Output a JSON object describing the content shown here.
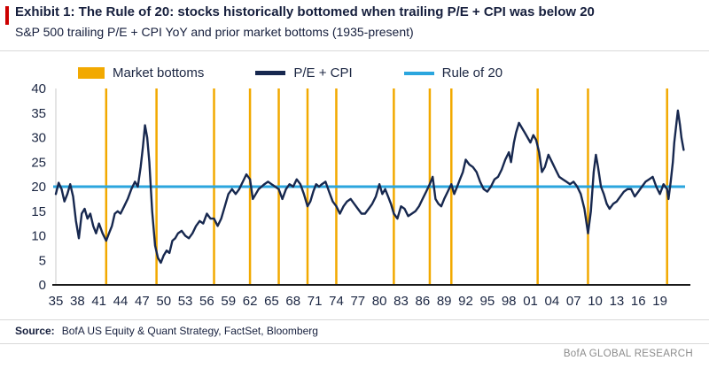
{
  "chart_data": {
    "type": "line",
    "title": "Exhibit 1:  The Rule of 20: stocks historically bottomed when trailing P/E + CPI was below 20",
    "subtitle": "S&P 500 trailing P/E + CPI YoY and prior market bottoms (1935-present)",
    "xlabel": "",
    "ylabel": "",
    "ylim": [
      0,
      40
    ],
    "x_range": [
      1935,
      2022.5
    ],
    "grid": "off",
    "legend_position": "top",
    "y_ticks": [
      0,
      5,
      10,
      15,
      20,
      25,
      30,
      35,
      40
    ],
    "x_tick_years": [
      1935,
      1938,
      1941,
      1944,
      1947,
      1950,
      1953,
      1956,
      1959,
      1962,
      1965,
      1968,
      1971,
      1974,
      1977,
      1980,
      1983,
      1986,
      1989,
      1992,
      1995,
      1998,
      2001,
      2004,
      2007,
      2010,
      2013,
      2016,
      2019
    ],
    "x_tick_labels": [
      "35",
      "38",
      "41",
      "44",
      "47",
      "50",
      "53",
      "56",
      "59",
      "62",
      "65",
      "68",
      "71",
      "74",
      "77",
      "80",
      "83",
      "86",
      "89",
      "92",
      "95",
      "98",
      "01",
      "04",
      "07",
      "10",
      "13",
      "16",
      "19"
    ],
    "rule_of_20_value": 20,
    "market_bottom_years": [
      1942,
      1949,
      1957,
      1962,
      1966,
      1970,
      1974,
      1982,
      1987,
      1990,
      2002,
      2009,
      2020
    ],
    "colors": {
      "market_bottoms": "#F2A900",
      "pe_cpi": "#17284F",
      "rule_of_20": "#2BA6DE",
      "accent_red": "#CC0000",
      "text_navy": "#1B2642",
      "axis_black": "#1A1A1A",
      "brand_gray": "#8C8C8C"
    },
    "legend": [
      {
        "label": "Market bottoms",
        "swatch": "rect",
        "color": "#F2A900"
      },
      {
        "label": "P/E + CPI",
        "swatch": "line-thick",
        "color": "#17284F"
      },
      {
        "label": "Rule of 20",
        "swatch": "line-thin",
        "color": "#2BA6DE"
      }
    ],
    "series": [
      {
        "name": "P/E + CPI",
        "color": "#17284F",
        "points": [
          [
            1935,
            18.5
          ],
          [
            1935.4,
            20.8
          ],
          [
            1935.8,
            19.5
          ],
          [
            1936.2,
            17
          ],
          [
            1936.6,
            18.5
          ],
          [
            1937,
            20.5
          ],
          [
            1937.4,
            18
          ],
          [
            1937.8,
            13
          ],
          [
            1938.2,
            9.5
          ],
          [
            1938.6,
            14.5
          ],
          [
            1939,
            15.5
          ],
          [
            1939.4,
            13.5
          ],
          [
            1939.8,
            14.5
          ],
          [
            1940.2,
            12
          ],
          [
            1940.6,
            10.5
          ],
          [
            1941,
            12.5
          ],
          [
            1941.5,
            10.5
          ],
          [
            1942,
            9
          ],
          [
            1942.4,
            10.5
          ],
          [
            1942.8,
            12
          ],
          [
            1943.2,
            14.5
          ],
          [
            1943.6,
            15
          ],
          [
            1944,
            14.5
          ],
          [
            1944.5,
            16
          ],
          [
            1945,
            17.5
          ],
          [
            1945.5,
            19.5
          ],
          [
            1946,
            21
          ],
          [
            1946.4,
            20
          ],
          [
            1946.8,
            24
          ],
          [
            1947.1,
            28
          ],
          [
            1947.4,
            32.5
          ],
          [
            1947.7,
            30
          ],
          [
            1948,
            25
          ],
          [
            1948.4,
            15
          ],
          [
            1948.8,
            8
          ],
          [
            1949.2,
            5.5
          ],
          [
            1949.6,
            4.5
          ],
          [
            1950,
            6
          ],
          [
            1950.4,
            7
          ],
          [
            1950.8,
            6.5
          ],
          [
            1951.2,
            9
          ],
          [
            1951.6,
            9.5
          ],
          [
            1952,
            10.5
          ],
          [
            1952.5,
            11
          ],
          [
            1953,
            10
          ],
          [
            1953.5,
            9.5
          ],
          [
            1954,
            10.5
          ],
          [
            1954.5,
            12
          ],
          [
            1955,
            13
          ],
          [
            1955.5,
            12.5
          ],
          [
            1956,
            14.5
          ],
          [
            1956.5,
            13.5
          ],
          [
            1957,
            13.5
          ],
          [
            1957.5,
            12
          ],
          [
            1958,
            13.5
          ],
          [
            1958.5,
            16
          ],
          [
            1959,
            18.5
          ],
          [
            1959.5,
            19.5
          ],
          [
            1960,
            18.5
          ],
          [
            1960.5,
            19.5
          ],
          [
            1961,
            21
          ],
          [
            1961.5,
            22.5
          ],
          [
            1962,
            21.5
          ],
          [
            1962.4,
            17.5
          ],
          [
            1962.8,
            18.5
          ],
          [
            1963.2,
            19.5
          ],
          [
            1963.6,
            20
          ],
          [
            1964,
            20.5
          ],
          [
            1964.5,
            21
          ],
          [
            1965,
            20.5
          ],
          [
            1965.5,
            20
          ],
          [
            1966,
            19.5
          ],
          [
            1966.5,
            17.5
          ],
          [
            1967,
            19.5
          ],
          [
            1967.5,
            20.5
          ],
          [
            1968,
            20
          ],
          [
            1968.5,
            21.5
          ],
          [
            1969,
            20.5
          ],
          [
            1969.5,
            18.5
          ],
          [
            1970,
            16
          ],
          [
            1970.4,
            17
          ],
          [
            1970.8,
            19
          ],
          [
            1971.2,
            20.5
          ],
          [
            1971.6,
            20
          ],
          [
            1972,
            20.5
          ],
          [
            1972.5,
            21
          ],
          [
            1973,
            19
          ],
          [
            1973.5,
            17
          ],
          [
            1974,
            16
          ],
          [
            1974.5,
            14.5
          ],
          [
            1975,
            16
          ],
          [
            1975.5,
            17
          ],
          [
            1976,
            17.5
          ],
          [
            1976.5,
            16.5
          ],
          [
            1977,
            15.5
          ],
          [
            1977.5,
            14.5
          ],
          [
            1978,
            14.5
          ],
          [
            1978.5,
            15.5
          ],
          [
            1979,
            16.5
          ],
          [
            1979.5,
            18
          ],
          [
            1980,
            20.5
          ],
          [
            1980.4,
            18.5
          ],
          [
            1980.8,
            19.5
          ],
          [
            1981.2,
            18
          ],
          [
            1981.6,
            16.5
          ],
          [
            1982,
            14.5
          ],
          [
            1982.5,
            13.5
          ],
          [
            1983,
            16
          ],
          [
            1983.5,
            15.5
          ],
          [
            1984,
            14
          ],
          [
            1984.5,
            14.5
          ],
          [
            1985,
            15
          ],
          [
            1985.5,
            16
          ],
          [
            1986,
            17.5
          ],
          [
            1986.5,
            19
          ],
          [
            1987,
            20.5
          ],
          [
            1987.4,
            22
          ],
          [
            1987.8,
            17.5
          ],
          [
            1988.2,
            16.5
          ],
          [
            1988.6,
            16
          ],
          [
            1989,
            17.5
          ],
          [
            1989.5,
            19
          ],
          [
            1990,
            20.5
          ],
          [
            1990.4,
            18.5
          ],
          [
            1990.8,
            20
          ],
          [
            1991.2,
            21.5
          ],
          [
            1991.6,
            23
          ],
          [
            1992,
            25.5
          ],
          [
            1992.5,
            24.5
          ],
          [
            1993,
            24
          ],
          [
            1993.5,
            23
          ],
          [
            1994,
            21
          ],
          [
            1994.5,
            19.5
          ],
          [
            1995,
            19
          ],
          [
            1995.5,
            20
          ],
          [
            1996,
            21.5
          ],
          [
            1996.5,
            22
          ],
          [
            1997,
            23.5
          ],
          [
            1997.5,
            25.5
          ],
          [
            1998,
            27
          ],
          [
            1998.3,
            25
          ],
          [
            1998.7,
            29
          ],
          [
            1999,
            31
          ],
          [
            1999.4,
            33
          ],
          [
            1999.8,
            32
          ],
          [
            2000.2,
            31
          ],
          [
            2000.6,
            30
          ],
          [
            2001,
            29
          ],
          [
            2001.4,
            30.5
          ],
          [
            2001.8,
            29.5
          ],
          [
            2002.2,
            27
          ],
          [
            2002.6,
            23
          ],
          [
            2003,
            24
          ],
          [
            2003.5,
            26.5
          ],
          [
            2004,
            25
          ],
          [
            2004.5,
            23.5
          ],
          [
            2005,
            22
          ],
          [
            2005.5,
            21.5
          ],
          [
            2006,
            21
          ],
          [
            2006.5,
            20.5
          ],
          [
            2007,
            21
          ],
          [
            2007.5,
            20
          ],
          [
            2008,
            18.5
          ],
          [
            2008.5,
            15.5
          ],
          [
            2009,
            10.5
          ],
          [
            2009.4,
            15
          ],
          [
            2009.8,
            23
          ],
          [
            2010.1,
            26.5
          ],
          [
            2010.4,
            24
          ],
          [
            2010.8,
            20
          ],
          [
            2011.2,
            18.5
          ],
          [
            2011.6,
            16.5
          ],
          [
            2012,
            15.5
          ],
          [
            2012.5,
            16.5
          ],
          [
            2013,
            17
          ],
          [
            2013.5,
            18
          ],
          [
            2014,
            19
          ],
          [
            2014.5,
            19.5
          ],
          [
            2015,
            19.5
          ],
          [
            2015.5,
            18
          ],
          [
            2016,
            19
          ],
          [
            2016.5,
            20
          ],
          [
            2017,
            21
          ],
          [
            2017.5,
            21.5
          ],
          [
            2018,
            22
          ],
          [
            2018.5,
            20
          ],
          [
            2019,
            18.5
          ],
          [
            2019.5,
            20.5
          ],
          [
            2020,
            19.5
          ],
          [
            2020.2,
            17.5
          ],
          [
            2020.5,
            21
          ],
          [
            2020.8,
            25
          ],
          [
            2021,
            29
          ],
          [
            2021.3,
            33
          ],
          [
            2021.5,
            35.5
          ],
          [
            2021.8,
            32.5
          ],
          [
            2022,
            30
          ],
          [
            2022.3,
            27.5
          ]
        ]
      }
    ]
  },
  "footer": {
    "source_label": "Source:",
    "source_text": "BofA US Equity & Quant  Strategy, FactSet, Bloomberg",
    "brand": "BofA GLOBAL RESEARCH"
  }
}
